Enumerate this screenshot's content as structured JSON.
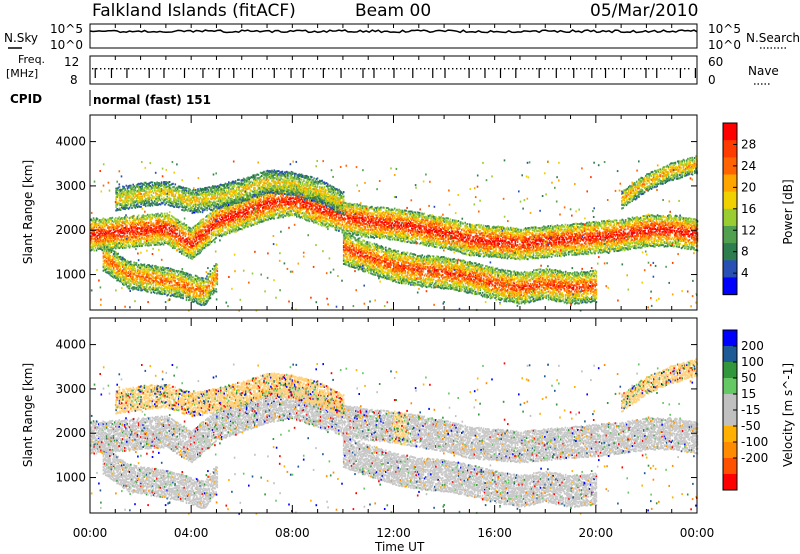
{
  "header": {
    "station": "Falkland Islands (fitACF)",
    "beam": "Beam 00",
    "date": "05/Mar/2010"
  },
  "strips": {
    "nsky_label": "N.Sky",
    "nsearch_label": "N.Search",
    "freq_label_1": "Freq.",
    "freq_label_2": "[MHz]",
    "nave_label": "Nave",
    "cpid_label": "CPID",
    "cpid_value": "normal (fast) 151",
    "nsky_ticks": [
      "10^5",
      "10^0"
    ],
    "nsearch_ticks": [
      "10^5",
      "10^0"
    ],
    "freq_ticks": [
      "12",
      "8"
    ],
    "nave_ticks": [
      "60",
      "0"
    ]
  },
  "xaxis": {
    "title": "Time UT",
    "ticks": [
      "00:00",
      "04:00",
      "08:00",
      "12:00",
      "16:00",
      "20:00",
      "00:00"
    ]
  },
  "colors": {
    "power_scale": [
      "#0000ff",
      "#2850b4",
      "#2e7d4f",
      "#50a050",
      "#9acd32",
      "#f0d000",
      "#ffa500",
      "#ff6400",
      "#ff3c00",
      "#ff0000"
    ],
    "velocity_scale": [
      "#ff0000",
      "#ff5000",
      "#ff8c00",
      "#ffb000",
      "#c0c0c0",
      "#c0c0c0",
      "#64c864",
      "#32963c",
      "#1e5a96",
      "#0000ff"
    ],
    "ground_scatter": "#bebebe"
  },
  "chart_data": [
    {
      "type": "heatmap",
      "name": "power",
      "xlabel": "",
      "ylabel": "Slant Range [km]",
      "xlim_hours": [
        0,
        24
      ],
      "ylim": [
        200,
        4600
      ],
      "yticks": [
        1000,
        2000,
        3000,
        4000
      ],
      "colorbar": {
        "label": "Power [dB]",
        "min": 0,
        "max": 32,
        "ticks": [
          4,
          8,
          12,
          16,
          20,
          24,
          28
        ]
      },
      "echo_bands": [
        {
          "t": [
            0,
            1,
            2,
            3,
            4,
            5,
            6,
            7,
            8,
            9,
            10,
            11,
            12,
            13,
            14,
            15,
            16,
            17,
            18,
            19,
            20,
            21,
            22,
            23,
            24
          ],
          "r": [
            1900,
            1950,
            2000,
            2050,
            1700,
            2200,
            2400,
            2600,
            2700,
            2500,
            2300,
            2200,
            2150,
            2050,
            1950,
            1800,
            1750,
            1700,
            1750,
            1800,
            1850,
            1900,
            2000,
            2000,
            1900
          ],
          "width": 350,
          "power": 22
        },
        {
          "t": [
            0.5,
            1.5,
            2.5,
            3.5,
            4.5,
            5
          ],
          "r": [
            1400,
            1000,
            900,
            800,
            600,
            1000
          ],
          "width": 300,
          "power": 18
        },
        {
          "t": [
            10,
            11,
            12,
            13,
            14,
            15,
            16,
            17,
            18,
            19,
            20
          ],
          "r": [
            1600,
            1400,
            1200,
            1100,
            1050,
            950,
            800,
            700,
            800,
            700,
            750
          ],
          "width": 350,
          "power": 20
        },
        {
          "t": [
            1,
            2,
            3,
            4,
            5,
            6,
            7,
            8,
            9,
            10
          ],
          "r": [
            2700,
            2800,
            2850,
            2650,
            2750,
            2900,
            3100,
            3050,
            2900,
            2600
          ],
          "width": 250,
          "power": 14
        },
        {
          "t": [
            21,
            22,
            23,
            24
          ],
          "r": [
            2700,
            3100,
            3350,
            3500
          ],
          "width": 200,
          "power": 16
        }
      ]
    },
    {
      "type": "heatmap",
      "name": "velocity",
      "xlabel": "Time UT",
      "ylabel": "Slant Range [km]",
      "xlim_hours": [
        0,
        24
      ],
      "ylim": [
        200,
        4600
      ],
      "yticks": [
        1000,
        2000,
        3000,
        4000
      ],
      "colorbar": {
        "label": "Velocity [m s^-1]",
        "min": -250,
        "max": 250,
        "ticks": [
          200,
          100,
          50,
          15,
          -15,
          -50,
          -100,
          -200
        ]
      },
      "note_values": "ground scatter shown grey; ionospheric scatter mostly -15 to -50 m/s"
    }
  ]
}
